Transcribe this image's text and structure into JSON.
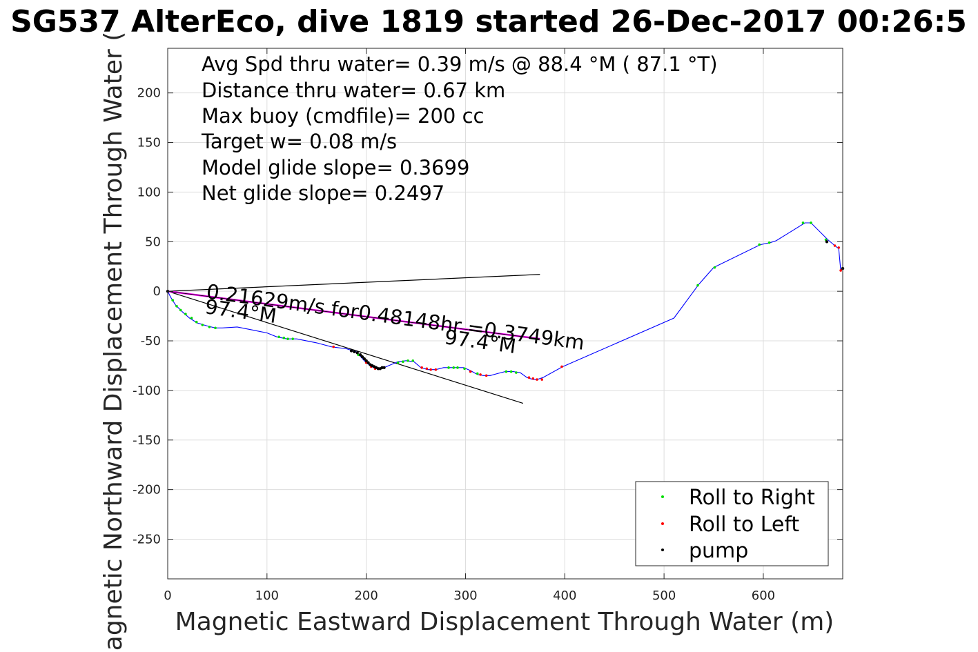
{
  "chart_data": {
    "type": "line",
    "title": "SG537 AlterEco, dive 1819 started 26-Dec-2017 00:26:5",
    "xlabel": "Magnetic Eastward Displacement Through Water (m)",
    "ylabel": "Magnetic Northward Displacement Through Water (",
    "xlim": [
      0,
      680
    ],
    "ylim": [
      -290,
      245
    ],
    "xticks": [
      0,
      100,
      200,
      300,
      400,
      500,
      600
    ],
    "yticks": [
      -250,
      -200,
      -150,
      -100,
      -50,
      0,
      50,
      100,
      150,
      200
    ],
    "grid": true,
    "stats": [
      "Avg Spd thru water=  0.39 m/s @  88.4 °M ( 87.1 °T)",
      "Distance thru water=  0.67 km",
      "Max buoy (cmdfile)= 200 cc",
      "Target w= 0.08 m/s",
      "Model glide slope= 0.3699",
      "Net glide slope= 0.2497"
    ],
    "annotations": {
      "current_label": "0.21629m/s for0.48148hr =0.3749km",
      "heading_label_1": "97.4°M",
      "heading_label_2": "97.4°M"
    },
    "reference_lines": [
      {
        "name": "heading_upper",
        "x": [
          0,
          375
        ],
        "y": [
          0,
          17
        ]
      },
      {
        "name": "heading_lower",
        "x": [
          0,
          358
        ],
        "y": [
          0,
          -113
        ]
      },
      {
        "name": "current",
        "x": [
          0,
          375
        ],
        "y": [
          0,
          -48
        ]
      }
    ],
    "series": [
      {
        "name": "track",
        "color": "#0000ff",
        "x": [
          0,
          3,
          8,
          15,
          22,
          30,
          40,
          48,
          55,
          70,
          85,
          100,
          110,
          120,
          130,
          150,
          165,
          180,
          190,
          198,
          205,
          212,
          218,
          225,
          232,
          240,
          248,
          255,
          262,
          270,
          278,
          285,
          292,
          298,
          305,
          312,
          318,
          325,
          332,
          340,
          348,
          355,
          362,
          368,
          372,
          378,
          398,
          510,
          535,
          550,
          597,
          607,
          613,
          642,
          648,
          665,
          672,
          676,
          678,
          680
        ],
        "y": [
          0,
          -6,
          -14,
          -21,
          -27,
          -32,
          -35,
          -37,
          -37,
          -36,
          -39,
          -42,
          -46,
          -48,
          -48,
          -52,
          -56,
          -58,
          -61,
          -70,
          -76,
          -78,
          -77,
          -74,
          -71,
          -70,
          -71,
          -77,
          -79,
          -79,
          -77,
          -77,
          -77,
          -77,
          -80,
          -84,
          -85,
          -85,
          -83,
          -81,
          -81,
          -82,
          -87,
          -89,
          -89,
          -87,
          -76,
          -27,
          7,
          24,
          47,
          49,
          51,
          69,
          69,
          52,
          46,
          43,
          21,
          23
        ]
      }
    ],
    "markers": {
      "roll_right": {
        "legend": "Roll to Right",
        "color": "#00dd00",
        "x": [
          5,
          9,
          13,
          18,
          24,
          29,
          35,
          42,
          48,
          112,
          117,
          121,
          126,
          192,
          206,
          232,
          237,
          242,
          247,
          283,
          288,
          292,
          299,
          312,
          341,
          346,
          351,
          534,
          551,
          596,
          606,
          640,
          648,
          663
        ],
        "y": [
          -9,
          -15,
          -19,
          -23,
          -27,
          -31,
          -34,
          -36,
          -37,
          -46,
          -47,
          -48,
          -48,
          -64,
          -75,
          -72,
          -71,
          -70,
          -70,
          -77,
          -77,
          -77,
          -78,
          -83,
          -81,
          -81,
          -82,
          6,
          24,
          47,
          49,
          69,
          69,
          52
        ]
      },
      "roll_left": {
        "legend": "Roll to Left",
        "color": "#ff0000",
        "x": [
          0,
          167,
          200,
          205,
          209,
          213,
          256,
          261,
          265,
          270,
          305,
          315,
          321,
          364,
          368,
          372,
          377,
          397,
          672,
          676,
          678
        ],
        "y": [
          0,
          -56,
          -72,
          -76,
          -78,
          -78,
          -77,
          -78,
          -79,
          -79,
          -81,
          -84,
          -85,
          -87,
          -88,
          -89,
          -89,
          -76,
          46,
          44,
          21
        ]
      },
      "pump": {
        "legend": "pump",
        "color": "#000000",
        "x": [
          0,
          185,
          188,
          191,
          194,
          196,
          198,
          200,
          202,
          204,
          206,
          208,
          210,
          212,
          214,
          216,
          218,
          664,
          680
        ],
        "y": [
          0,
          -60,
          -61,
          -62,
          -64,
          -66,
          -68,
          -70,
          -72,
          -74,
          -75,
          -76,
          -77,
          -78,
          -78,
          -77,
          -77,
          50,
          23
        ]
      }
    }
  }
}
